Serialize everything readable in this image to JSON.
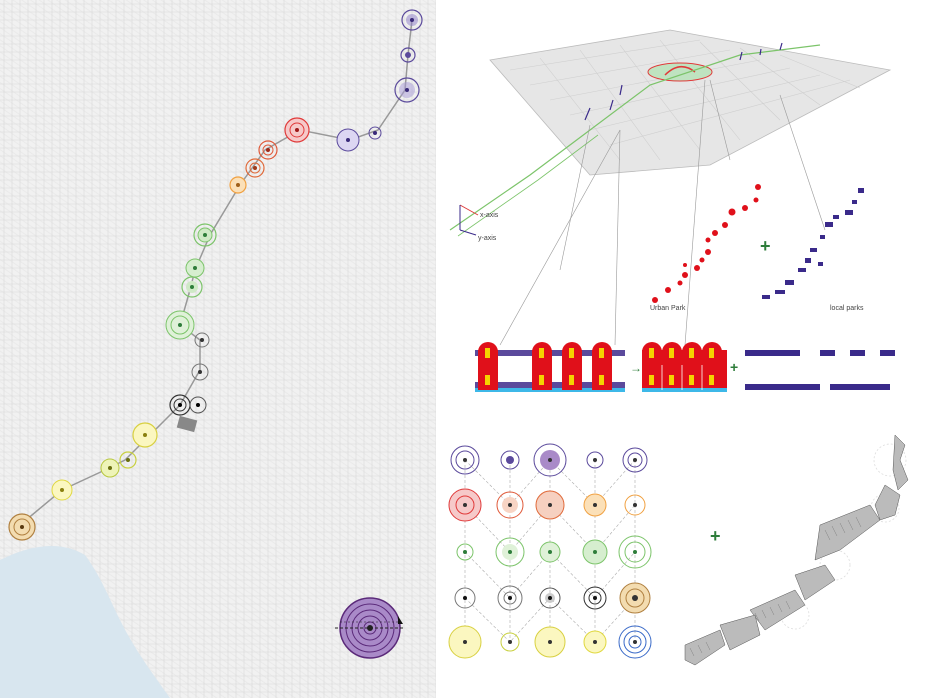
{
  "labels": {
    "urban_park": "Urban Park",
    "local_parks": "local parks",
    "x_axis": "x-axis",
    "y_axis": "y-axis",
    "plus": "+",
    "arrow": "→"
  },
  "colors": {
    "purple": "#5b4a9c",
    "red": "#e03a3a",
    "orange": "#f0a040",
    "green": "#7cc46a",
    "gray": "#777777",
    "yellow": "#e8e860",
    "sea": "#d8e6ef",
    "plus_green": "#2e7d3a",
    "light_blue": "#3db8e8"
  },
  "icons": [
    "plus-icon",
    "arrow-right-icon",
    "target-circle-icon"
  ]
}
